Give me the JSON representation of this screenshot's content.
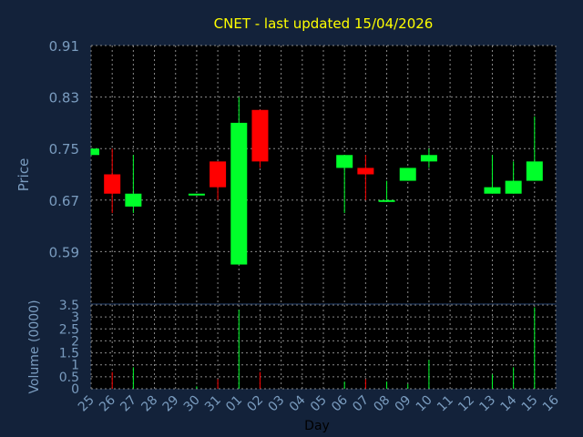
{
  "title": "CNET - last updated 15/04/2026",
  "colors": {
    "background": "#13223a",
    "plot": "#000000",
    "axis_text": "#7a9cbf",
    "title": "#ffff00",
    "grid": "#8a8a8a",
    "up": "#00ff2a",
    "down": "#ff0000"
  },
  "chart_data": [
    {
      "type": "candlestick",
      "ylabel": "Price",
      "ylim": [
        0.51,
        0.91
      ],
      "yticks": [
        "0.91",
        "0.83",
        "0.75",
        "0.67",
        "0.59"
      ],
      "ytick_values": [
        0.91,
        0.83,
        0.75,
        0.67,
        0.59
      ],
      "categories": [
        "25",
        "26",
        "27",
        "28",
        "29",
        "30",
        "31",
        "01",
        "02",
        "03",
        "04",
        "05",
        "06",
        "07",
        "08",
        "09",
        "10",
        "11",
        "12",
        "13",
        "14",
        "15",
        "16"
      ],
      "candles": [
        {
          "x": 0,
          "open": 0.74,
          "close": 0.75,
          "high": 0.75,
          "low": 0.74
        },
        {
          "x": 1,
          "open": 0.71,
          "close": 0.68,
          "high": 0.75,
          "low": 0.65
        },
        {
          "x": 2,
          "open": 0.66,
          "close": 0.68,
          "high": 0.74,
          "low": 0.65
        },
        {
          "x": 5,
          "open": 0.68,
          "close": 0.68,
          "high": 0.68,
          "low": 0.68
        },
        {
          "x": 6,
          "open": 0.73,
          "close": 0.69,
          "high": 0.73,
          "low": 0.67
        },
        {
          "x": 7,
          "open": 0.57,
          "close": 0.79,
          "high": 0.83,
          "low": 0.57
        },
        {
          "x": 8,
          "open": 0.81,
          "close": 0.73,
          "high": 0.81,
          "low": 0.72
        },
        {
          "x": 12,
          "open": 0.72,
          "close": 0.74,
          "high": 0.74,
          "low": 0.65
        },
        {
          "x": 13,
          "open": 0.72,
          "close": 0.71,
          "high": 0.74,
          "low": 0.67
        },
        {
          "x": 14,
          "open": 0.67,
          "close": 0.67,
          "high": 0.7,
          "low": 0.67
        },
        {
          "x": 15,
          "open": 0.7,
          "close": 0.72,
          "high": 0.72,
          "low": 0.7
        },
        {
          "x": 16,
          "open": 0.73,
          "close": 0.74,
          "high": 0.75,
          "low": 0.72
        },
        {
          "x": 19,
          "open": 0.68,
          "close": 0.69,
          "high": 0.74,
          "low": 0.68
        },
        {
          "x": 20,
          "open": 0.68,
          "close": 0.7,
          "high": 0.73,
          "low": 0.68
        },
        {
          "x": 21,
          "open": 0.7,
          "close": 0.73,
          "high": 0.8,
          "low": 0.7
        }
      ]
    },
    {
      "type": "bar",
      "xlabel": "Day",
      "ylabel": "Volume (0000)",
      "ylim": [
        0,
        3.5
      ],
      "yticks": [
        "3.5",
        "3",
        "2.5",
        "2",
        "1.5",
        "1",
        "0.5",
        "0"
      ],
      "ytick_values": [
        3.5,
        3,
        2.5,
        2,
        1.5,
        1,
        0.5,
        0
      ],
      "bars": [
        {
          "x": 1,
          "value": 0.7,
          "dir": "down"
        },
        {
          "x": 2,
          "value": 0.9,
          "dir": "up"
        },
        {
          "x": 5,
          "value": 0.1,
          "dir": "up"
        },
        {
          "x": 6,
          "value": 0.4,
          "dir": "down"
        },
        {
          "x": 7,
          "value": 3.3,
          "dir": "up"
        },
        {
          "x": 8,
          "value": 0.7,
          "dir": "down"
        },
        {
          "x": 12,
          "value": 0.3,
          "dir": "up"
        },
        {
          "x": 13,
          "value": 0.4,
          "dir": "down"
        },
        {
          "x": 14,
          "value": 0.3,
          "dir": "up"
        },
        {
          "x": 15,
          "value": 0.2,
          "dir": "up"
        },
        {
          "x": 16,
          "value": 1.2,
          "dir": "up"
        },
        {
          "x": 19,
          "value": 0.6,
          "dir": "up"
        },
        {
          "x": 20,
          "value": 0.9,
          "dir": "up"
        },
        {
          "x": 21,
          "value": 3.4,
          "dir": "up"
        }
      ]
    }
  ]
}
